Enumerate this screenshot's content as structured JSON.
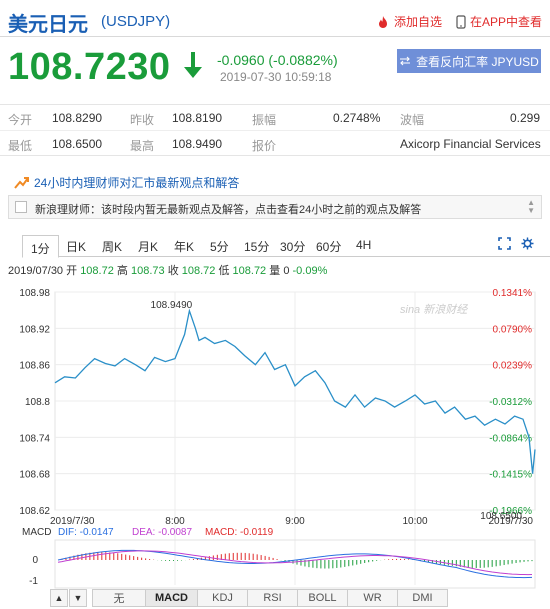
{
  "header": {
    "title": "美元日元",
    "code": "(USDJPY)",
    "favorite_label": "添加自选",
    "app_label": "在APP中查看"
  },
  "quote": {
    "price": "108.7230",
    "change": "-0.0960 (-0.0882%)",
    "time": "2019-07-30 10:59:18",
    "reverse_button": "查看反向汇率 JPYUSD"
  },
  "stats": {
    "row1": [
      {
        "label": "今开",
        "value": "108.8290"
      },
      {
        "label": "昨收",
        "value": "108.8190"
      },
      {
        "label": "振幅",
        "value": "0.2748%"
      },
      {
        "label": "波幅",
        "value": "0.299"
      }
    ],
    "row2": [
      {
        "label": "最低",
        "value": "108.6500"
      },
      {
        "label": "最高",
        "value": "108.9490"
      },
      {
        "label": "报价",
        "value": "Axicorp Financial Services"
      }
    ]
  },
  "advisor": {
    "link": "24小时内理财师对汇市最新观点和解答",
    "notice": "新浪理财师：该时段内暂无最新观点及解答，点击查看24小时之前的观点及解答"
  },
  "timeframe_tabs": [
    "1分",
    "日K",
    "周K",
    "月K",
    "年K",
    "5分",
    "15分",
    "30分",
    "60分",
    "4H"
  ],
  "active_tab": "1分",
  "info_line": {
    "date": "2019/07/30",
    "open_label": "开",
    "open": "108.72",
    "high_label": "高",
    "high": "108.73",
    "close_label": "收",
    "close": "108.72",
    "low_label": "低",
    "low": "108.72",
    "vol_label": "量",
    "vol": "0",
    "pct": "-0.09%"
  },
  "watermark": "sina 新浪财经",
  "macd": {
    "label": "MACD",
    "dif": "DIF: -0.0147",
    "dea": "DEA: -0.0087",
    "macd": "MACD: -0.0119",
    "y_ticks": [
      "0",
      "-1"
    ]
  },
  "indicator_tabs": [
    "无",
    "MACD",
    "KDJ",
    "RSI",
    "BOLL",
    "WR",
    "DMI"
  ],
  "active_indicator": "MACD",
  "colors": {
    "up": "#e02b2b",
    "down": "#1a9c3a",
    "line": "#2a8fc8",
    "link": "#1a5fb4",
    "button": "#6f8fd8"
  },
  "chart_data": {
    "type": "line",
    "title": "",
    "xlabel": "",
    "ylabel": "",
    "y_ticks": [
      "108.98",
      "108.92",
      "108.86",
      "108.8",
      "108.74",
      "108.68",
      "108.62"
    ],
    "pct_ticks": [
      "0.1341%",
      "0.0790%",
      "0.0239%",
      "-0.0312%",
      "-0.0864%",
      "-0.1415%",
      "-0.1966%"
    ],
    "x_ticks": [
      "2019/7/30",
      "8:00",
      "9:00",
      "10:00",
      "2019/7/30"
    ],
    "ylim": [
      108.62,
      108.98
    ],
    "prev_close": 108.819,
    "max_label": "108.9490",
    "min_label": "108.6500",
    "x_range": [
      7.0,
      11.0
    ],
    "series": [
      {
        "x": [
          7.0,
          7.08,
          7.17,
          7.25,
          7.33,
          7.42,
          7.5,
          7.58,
          7.67,
          7.75,
          7.83,
          7.92,
          8.0,
          8.08,
          8.12,
          8.17,
          8.2,
          8.25,
          8.33,
          8.42,
          8.5,
          8.58,
          8.67,
          8.75,
          8.83,
          8.92,
          9.0,
          9.08,
          9.17,
          9.25,
          9.33,
          9.42,
          9.5,
          9.58,
          9.67,
          9.75,
          9.83,
          9.92,
          10.0,
          10.08,
          10.17,
          10.25,
          10.33,
          10.42,
          10.5,
          10.58,
          10.67,
          10.75,
          10.83,
          10.9,
          10.95,
          10.98,
          11.0
        ],
        "y": [
          108.83,
          108.84,
          108.838,
          108.855,
          108.87,
          108.862,
          108.858,
          108.87,
          108.86,
          108.85,
          108.872,
          108.865,
          108.87,
          108.91,
          108.949,
          108.92,
          108.9,
          108.905,
          108.895,
          108.9,
          108.89,
          108.875,
          108.86,
          108.88,
          108.852,
          108.86,
          108.825,
          108.84,
          108.85,
          108.83,
          108.8,
          108.79,
          108.81,
          108.79,
          108.805,
          108.8,
          108.79,
          108.8,
          108.81,
          108.795,
          108.8,
          108.78,
          108.79,
          108.77,
          108.775,
          108.76,
          108.77,
          108.762,
          108.775,
          108.77,
          108.74,
          108.68,
          108.72
        ]
      }
    ]
  }
}
